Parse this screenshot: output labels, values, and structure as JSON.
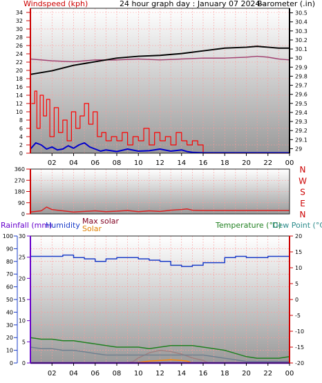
{
  "colors": {
    "wind_axis": "#cc0000",
    "barometer_axis": "#000000",
    "wind_gust": "#ff0000",
    "wind_avg": "#0000cc",
    "barometer_line": "#000000",
    "barometer_prev": "#a04070",
    "direction": "#dd2222",
    "rain": "#6600cc",
    "humidity": "#1a3cc8",
    "temperature": "#208020",
    "dew_point": "#708090",
    "max_solar": "#a08080",
    "solar": "#ff8800",
    "grid": "#ff9999"
  },
  "labels": {
    "windspeed": "Windspeed (kph)",
    "title": "24 hour graph day : January 07 2024--",
    "barometer": "Barometer (.in)",
    "rainfall": "Rainfall (mm)",
    "humidity": "Humidity",
    "max_solar": "Max solar",
    "solar": "Solar",
    "temperature": "Temperature (°C)",
    "dew_point": "Dew Point (°C)"
  },
  "x_ticks": [
    "02",
    "04",
    "06",
    "08",
    "10",
    "12",
    "14",
    "16",
    "18",
    "20",
    "22",
    "00"
  ],
  "chart_data": [
    {
      "type": "line",
      "left_axis": {
        "label": "Windspeed (kph)",
        "ticks": [
          0,
          2,
          4,
          6,
          8,
          10,
          12,
          14,
          16,
          18,
          20,
          22,
          24,
          26,
          28,
          30,
          32,
          34
        ],
        "range": [
          0,
          35
        ]
      },
      "right_axis": {
        "label": "Barometer (.in)",
        "ticks": [
          "29",
          "29.1",
          "29.2",
          "29.3",
          "29.4",
          "29.5",
          "29.6",
          "29.7",
          "29.8",
          "29.9",
          "30",
          "30.1",
          "30.2",
          "30.3",
          "30.4",
          "30.5"
        ],
        "range": [
          28.95,
          30.55
        ]
      },
      "series": [
        {
          "name": "wind_gust",
          "axis": "left",
          "x": [
            0.1,
            0.4,
            0.6,
            0.9,
            1.2,
            1.5,
            1.8,
            2.2,
            2.6,
            3.0,
            3.4,
            3.8,
            4.2,
            4.6,
            5.0,
            5.4,
            5.8,
            6.2,
            6.6,
            7.0,
            7.5,
            8.0,
            8.5,
            9.0,
            9.5,
            10.0,
            10.5,
            11.0,
            11.5,
            12.0,
            12.5,
            13.0,
            13.5,
            14.0,
            14.5,
            15.0,
            15.5,
            16.0,
            17.0,
            18.0,
            19.0,
            20.0,
            21.0,
            22.0,
            23.0,
            24.0
          ],
          "values": [
            12,
            15,
            6,
            14,
            9,
            13,
            4,
            11,
            5,
            8,
            3,
            10,
            6,
            9,
            12,
            7,
            10,
            4,
            5,
            3,
            4,
            3,
            5,
            2,
            4,
            3,
            6,
            2,
            5,
            3,
            4,
            2,
            5,
            3,
            2,
            3,
            2,
            0,
            0,
            0,
            0,
            0,
            0,
            0,
            0,
            0
          ]
        },
        {
          "name": "wind_avg",
          "axis": "left",
          "x": [
            0,
            0.5,
            1.0,
            1.5,
            2.0,
            2.5,
            3.0,
            3.5,
            4.0,
            4.5,
            5.0,
            5.5,
            6.0,
            6.5,
            7.0,
            8.0,
            9.0,
            10.0,
            11.0,
            12.0,
            13.0,
            14.0,
            14.5,
            15.0,
            16.0,
            18.0,
            20.0,
            22.0,
            24.0
          ],
          "values": [
            1.0,
            2.5,
            2.0,
            1.0,
            1.5,
            0.8,
            1.0,
            1.8,
            1.2,
            2.0,
            2.5,
            1.5,
            1.0,
            0.5,
            0.8,
            0.4,
            1.0,
            0.5,
            0.6,
            1.0,
            0.5,
            0.8,
            0.4,
            0.2,
            0.1,
            0.1,
            0.1,
            0.1,
            0.1
          ]
        },
        {
          "name": "barometer",
          "axis": "right",
          "x": [
            0,
            2,
            4,
            6,
            8,
            10,
            12,
            14,
            16,
            18,
            20,
            21,
            22,
            23,
            24
          ],
          "values": [
            29.82,
            29.86,
            29.92,
            29.96,
            30.0,
            30.02,
            30.03,
            30.05,
            30.08,
            30.11,
            30.12,
            30.13,
            30.12,
            30.11,
            30.11
          ]
        },
        {
          "name": "barometer_prev",
          "axis": "right",
          "x": [
            0,
            2,
            4,
            6,
            8,
            10,
            12,
            14,
            16,
            18,
            20,
            21,
            22,
            23,
            24
          ],
          "values": [
            29.99,
            29.97,
            29.96,
            29.98,
            29.98,
            29.99,
            29.98,
            29.99,
            30.0,
            30.0,
            30.01,
            30.02,
            30.01,
            29.99,
            29.98
          ]
        }
      ]
    },
    {
      "type": "line",
      "left_axis": {
        "ticks": [
          0,
          90,
          180,
          270,
          360
        ],
        "range": [
          0,
          360
        ]
      },
      "right_axis": {
        "ticks": [
          "N",
          "E",
          "S",
          "W",
          "N"
        ]
      },
      "series": [
        {
          "name": "wind_direction",
          "x": [
            0,
            1,
            1.5,
            2,
            2.5,
            3,
            4,
            5,
            6,
            7,
            8,
            9,
            10,
            11,
            12,
            13,
            14,
            14.5,
            15,
            16,
            18,
            20,
            22,
            24
          ],
          "values": [
            15,
            25,
            55,
            35,
            30,
            25,
            15,
            20,
            25,
            18,
            22,
            28,
            18,
            25,
            20,
            30,
            35,
            40,
            30,
            28,
            28,
            28,
            28,
            28
          ]
        }
      ]
    },
    {
      "type": "line",
      "rain_axis": {
        "label": "Rainfall (mm)",
        "ticks": [
          0,
          5,
          10,
          15,
          20,
          25,
          30
        ],
        "range": [
          0,
          30
        ]
      },
      "humidity_axis": {
        "label": "Humidity",
        "ticks": [
          0,
          10,
          20,
          30,
          40,
          50,
          60,
          70,
          80,
          90,
          100
        ],
        "range": [
          0,
          100
        ]
      },
      "temp_axis": {
        "label": "Temperature (°C)",
        "ticks": [
          -20,
          -15,
          -10,
          -5,
          0,
          5,
          10,
          15,
          20
        ],
        "range": [
          -20,
          20
        ]
      },
      "series": [
        {
          "name": "humidity",
          "axis": "humidity",
          "x": [
            0,
            1,
            2,
            3,
            4,
            5,
            6,
            7,
            8,
            9,
            10,
            11,
            12,
            13,
            14,
            15,
            16,
            17,
            18,
            19,
            20,
            21,
            22,
            23,
            24
          ],
          "values": [
            84,
            84,
            84,
            85,
            83,
            82,
            80,
            82,
            83,
            83,
            82,
            81,
            80,
            77,
            76,
            77,
            79,
            79,
            83,
            84,
            83,
            83,
            84,
            84,
            83
          ]
        },
        {
          "name": "temperature",
          "axis": "temp",
          "x": [
            0,
            1,
            2,
            3,
            4,
            5,
            6,
            7,
            8,
            9,
            10,
            11,
            12,
            13,
            14,
            15,
            16,
            17,
            18,
            19,
            20,
            21,
            22,
            23,
            24
          ],
          "values": [
            -12,
            -12.5,
            -12.5,
            -13,
            -13,
            -13.5,
            -14,
            -14.5,
            -15,
            -15,
            -15,
            -15.5,
            -15,
            -14.5,
            -14.5,
            -14.5,
            -15,
            -15.5,
            -16,
            -17,
            -18,
            -18.5,
            -18.5,
            -18.5,
            -18
          ]
        },
        {
          "name": "dew_point",
          "axis": "temp",
          "x": [
            0,
            1,
            2,
            3,
            4,
            5,
            6,
            7,
            8,
            9,
            10,
            11,
            12,
            13,
            14,
            15,
            16,
            17,
            18,
            19,
            20,
            21,
            22,
            23,
            24
          ],
          "values": [
            -15,
            -15.5,
            -15.5,
            -16,
            -16,
            -16.5,
            -17,
            -17.5,
            -17.5,
            -17.5,
            -17.5,
            -17.5,
            -17.5,
            -17.5,
            -17.5,
            -17.5,
            -17.5,
            -18,
            -18.5,
            -19,
            -19.5,
            -19.5,
            -19.5,
            -19.5,
            -19.5
          ]
        },
        {
          "name": "max_solar",
          "axis": "humidity",
          "x": [
            8.8,
            9.5,
            10,
            11,
            12,
            13,
            14,
            15,
            16,
            16.5
          ],
          "values": [
            0,
            1,
            4,
            8,
            10,
            9,
            7,
            4,
            2,
            0
          ]
        },
        {
          "name": "solar",
          "axis": "humidity",
          "x": [
            9.5,
            10,
            11,
            12,
            13,
            14,
            14.5,
            15
          ],
          "values": [
            0,
            0.5,
            1.5,
            2,
            2.5,
            2,
            1.5,
            0
          ]
        },
        {
          "name": "rainfall",
          "axis": "rain",
          "x": [
            0,
            24
          ],
          "values": [
            0,
            0
          ]
        }
      ]
    }
  ]
}
